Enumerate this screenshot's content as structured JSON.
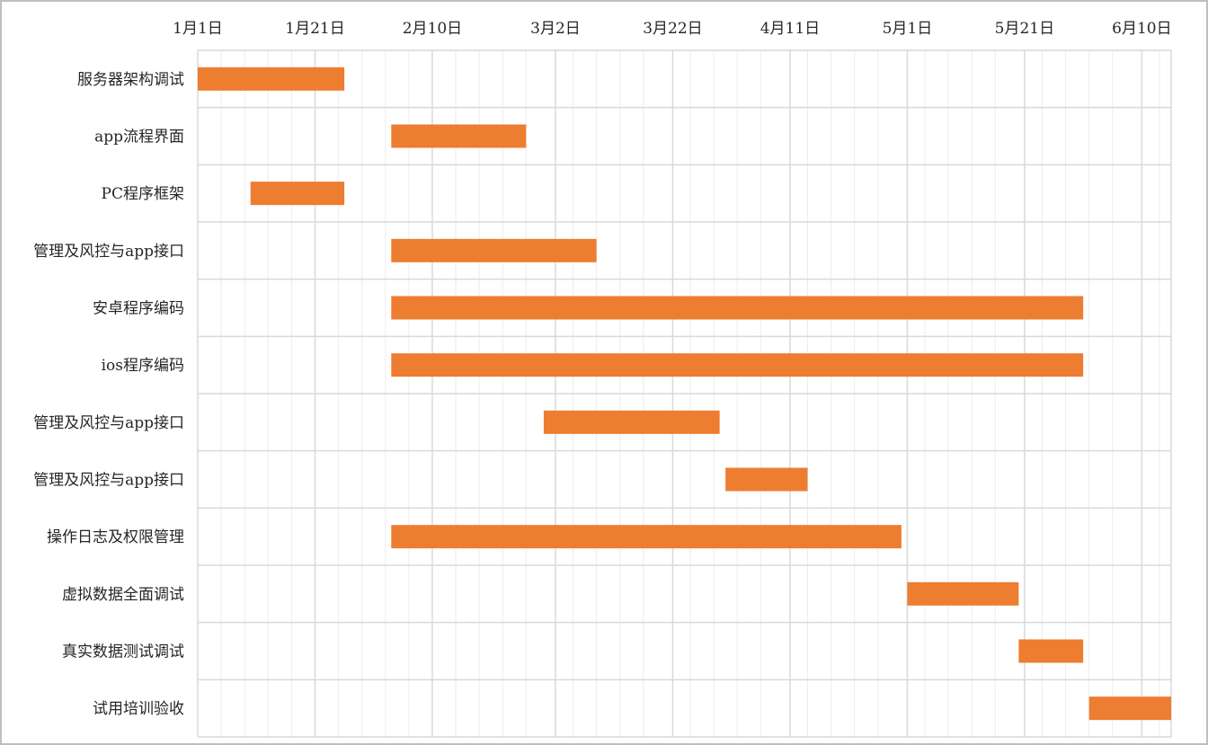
{
  "chart_data": {
    "type": "gantt",
    "x_start": "2024-01-01",
    "x_end": "2024-06-15",
    "x_ticks": [
      {
        "date": "2024-01-01",
        "label": "1月1日"
      },
      {
        "date": "2024-01-21",
        "label": "1月21日"
      },
      {
        "date": "2024-02-10",
        "label": "2月10日"
      },
      {
        "date": "2024-03-02",
        "label": "3月2日"
      },
      {
        "date": "2024-03-22",
        "label": "3月22日"
      },
      {
        "date": "2024-04-11",
        "label": "4月11日"
      },
      {
        "date": "2024-05-01",
        "label": "5月1日"
      },
      {
        "date": "2024-05-21",
        "label": "5月21日"
      },
      {
        "date": "2024-06-10",
        "label": "6月10日"
      }
    ],
    "tasks": [
      {
        "name": "服务器架构调试",
        "start": "2024-01-01",
        "end": "2024-01-26"
      },
      {
        "name": "app流程界面",
        "start": "2024-02-03",
        "end": "2024-02-26"
      },
      {
        "name": "PC程序框架",
        "start": "2024-01-10",
        "end": "2024-01-26"
      },
      {
        "name": "管理及风控与app接口",
        "start": "2024-02-03",
        "end": "2024-03-09"
      },
      {
        "name": "安卓程序编码",
        "start": "2024-02-03",
        "end": "2024-05-31"
      },
      {
        "name": "ios程序编码",
        "start": "2024-02-03",
        "end": "2024-05-31"
      },
      {
        "name": "管理及风控与app接口",
        "start": "2024-02-29",
        "end": "2024-03-30"
      },
      {
        "name": "管理及风控与app接口",
        "start": "2024-03-31",
        "end": "2024-04-14"
      },
      {
        "name": "操作日志及权限管理",
        "start": "2024-02-03",
        "end": "2024-04-30"
      },
      {
        "name": "虚拟数据全面调试",
        "start": "2024-05-01",
        "end": "2024-05-20"
      },
      {
        "name": "真实数据测试调试",
        "start": "2024-05-20",
        "end": "2024-05-31"
      },
      {
        "name": "试用培训验收",
        "start": "2024-06-01",
        "end": "2024-06-15"
      }
    ],
    "bar_color": "#ED7D31",
    "grid": true,
    "gridline_color": "#d9d9d9",
    "minor_gridline_color": "#ececec"
  }
}
